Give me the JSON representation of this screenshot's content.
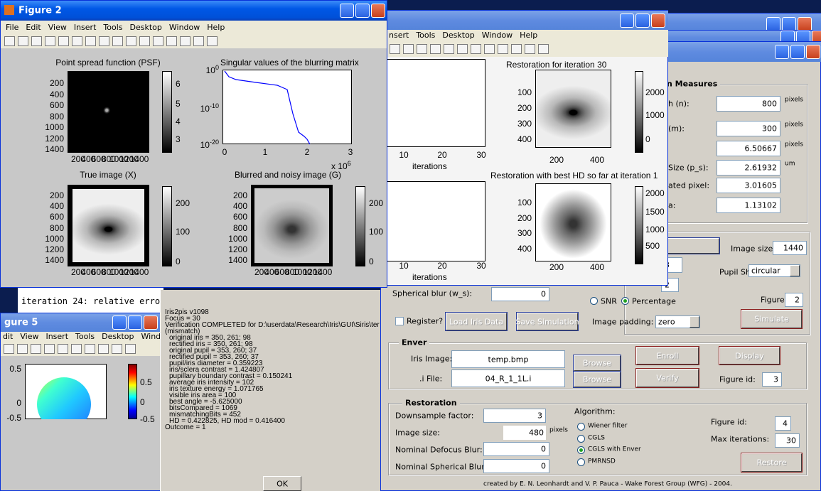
{
  "figure2": {
    "title": "Figure 2",
    "menu": [
      "File",
      "Edit",
      "View",
      "Insert",
      "Tools",
      "Desktop",
      "Window",
      "Help"
    ],
    "psf": {
      "title": "Point spread function (PSF)",
      "yticks": [
        200,
        400,
        600,
        800,
        1000,
        1200,
        1400
      ],
      "xticks": [
        200,
        400,
        600,
        800,
        1000,
        1200,
        1400
      ],
      "cbar": [
        6,
        5,
        4,
        3
      ]
    },
    "singular": {
      "title": "Singular values of the blurring matrix",
      "yticks": [
        {
          "base": "10",
          "exp": "0"
        },
        {
          "base": "10",
          "exp": "-10"
        },
        {
          "base": "10",
          "exp": "-20"
        }
      ],
      "xticks": [
        0,
        1,
        2,
        3
      ],
      "scale": {
        "base": "x 10",
        "exp": "6"
      }
    },
    "true_image": {
      "title": "True image (X)",
      "yticks": [
        200,
        400,
        600,
        800,
        1000,
        1200,
        1400
      ],
      "xticks": [
        200,
        400,
        600,
        800,
        1000,
        1200,
        1400
      ],
      "cbar": [
        200,
        100,
        0
      ]
    },
    "blurred": {
      "title": "Blurred and noisy image (G)",
      "yticks": [
        200,
        400,
        600,
        800,
        1000,
        1200,
        1400
      ],
      "xticks": [
        200,
        400,
        600,
        800,
        1000,
        1200,
        1400
      ],
      "cbar": [
        200,
        100,
        0
      ]
    }
  },
  "figure_mid": {
    "menu": [
      "nsert",
      "Tools",
      "Desktop",
      "Window",
      "Help"
    ],
    "plot1": {
      "xticks": [
        10,
        20,
        30
      ],
      "xlabel": "iterations"
    },
    "restore30": {
      "title": "Restoration for iteration 30",
      "yticks": [
        100,
        200,
        300,
        400
      ],
      "xticks": [
        200,
        400
      ],
      "cbar": [
        2000,
        1000,
        0
      ]
    },
    "plot2": {
      "xticks": [
        10,
        20,
        30
      ],
      "xlabel": "iterations"
    },
    "restore_best": {
      "title": "Restoration with best HD so far at iteration 1",
      "yticks": [
        100,
        200,
        300,
        400
      ],
      "xticks": [
        200,
        400
      ],
      "cbar": [
        2000,
        1500,
        1000,
        500
      ]
    }
  },
  "figure5": {
    "title": "gure 5",
    "menu": [
      "dit",
      "View",
      "Insert",
      "Tools",
      "Desktop",
      "Window",
      "Help"
    ],
    "yticks": [
      0.5,
      0,
      -0.5
    ],
    "cbar": [
      0.5,
      0,
      -0.5
    ]
  },
  "command": {
    "lines": [
      "iteration 24: relative erro"
    ]
  },
  "dialog": {
    "lines": [
      "Iris2pis v1098",
      "Focus = 30",
      "Verification COMPLETED for D:\\userdata\\Research\\Iris\\GUI\\Siris\\ter",
      "(mismatch)",
      "original iris = 350, 261; 98",
      "rectified iris = 350, 261; 98",
      "original pupil = 353, 260; 37",
      "rectified pupil = 353, 260; 37",
      "pupil/iris diameter = 0.359223",
      "iris/sclera contrast = 1.424807",
      "pupillary boundary contrast = 0.150241",
      "average iris intensity = 102",
      "iris texture energy = 1.071765",
      "visible iris area = 100",
      "best angle = -5.625000",
      "bitsCompared = 1069",
      "mismatchingBits = 452",
      "HD = 0.422825, HD mod = 0.416400",
      "Outcome = 1"
    ],
    "ok": "OK"
  },
  "gui": {
    "measures": {
      "heading": "n Measures",
      "rows": [
        {
          "label": "h (n):",
          "value": 800,
          "unit": "pixels"
        },
        {
          "label": "(m):",
          "value": 300,
          "unit": "pixels"
        },
        {
          "value": 6.50667,
          "unit": "pixels"
        },
        {
          "label": "Size (p_s):",
          "value": 2.61932,
          "unit": "um"
        },
        {
          "label": "ated pixel:",
          "value": 3.01605
        },
        {
          "label": "a:",
          "value": 1.13102
        }
      ]
    },
    "simulation": {
      "image_size_label": "Image size:",
      "image_size": 1440,
      "field_a": 3,
      "field_b": 2,
      "pupil_shape_label": "Pupil Shape:",
      "pupil_shape": "circular",
      "figure_id_label": "Figure id:",
      "figure_id": 2,
      "simulate": "Simulate",
      "spherical_blur_label": "Spherical blur (w_s):",
      "spherical_blur": 0,
      "snr": "SNR",
      "percentage": "Percentage",
      "register": "Register?",
      "load": "Load Iris Data",
      "save": "Save Simulation",
      "padding_label": "Image padding:",
      "padding": "zero"
    },
    "enver": {
      "heading": "Enver",
      "iris_label": "Iris Image:",
      "iris_file": "temp.bmp",
      "browse1": "Browse",
      "enroll": "Enroll",
      "display": "Display",
      "i_label": ".i File:",
      "i_file": "04_R_1_1L.i",
      "browse2": "Browse",
      "verify": "Verify",
      "figure_id_label": "Figure id:",
      "figure_id": 3
    },
    "restoration": {
      "heading": "Restoration",
      "downsample_label": "Downsample factor:",
      "downsample": 3,
      "image_size_label": "Image size:",
      "image_size": 480,
      "image_size_unit": "pixels",
      "defocus_label": "Nominal Defocus Blur:",
      "defocus": 0,
      "spherical_label": "Nominal Spherical Blur:",
      "spherical": 0,
      "algorithm_label": "Algorithm:",
      "algorithms": [
        "Wiener filter",
        "CGLS",
        "CGLS with Enver",
        "PMRNSD"
      ],
      "figure_id_label": "Figure id:",
      "figure_id": 4,
      "max_iter_label": "Max iterations:",
      "max_iter": 30,
      "restore": "Restore"
    },
    "footer": "created by E. N. Leonhardt and V. P. Pauca  - Wake Forest Group (WFG)  -  2004."
  }
}
